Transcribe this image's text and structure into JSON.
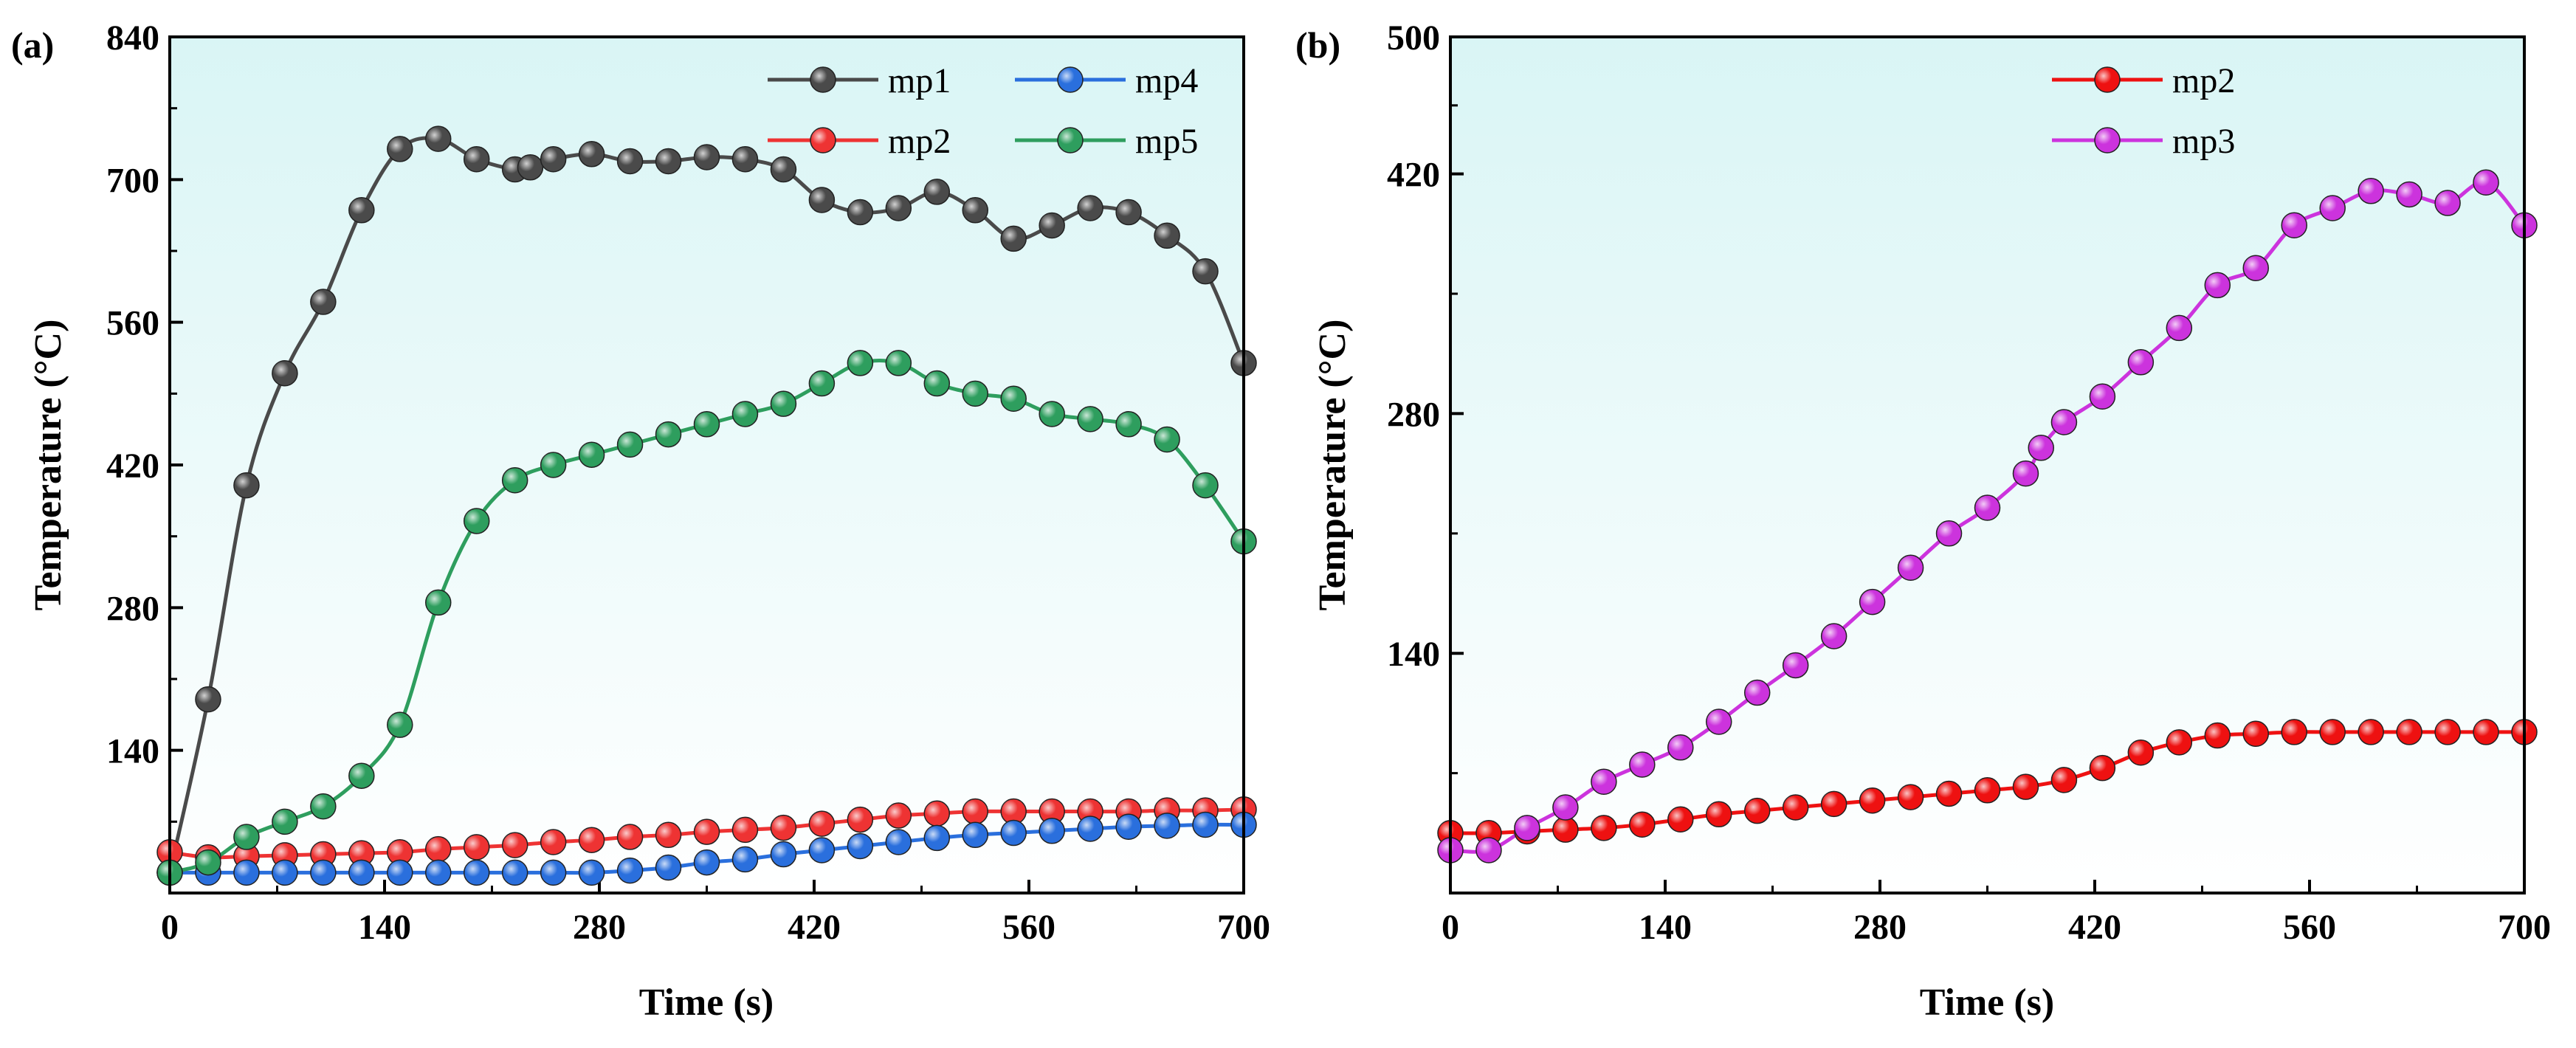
{
  "chart_data": [
    {
      "panel": "(a)",
      "type": "line",
      "xlabel": "Time (s)",
      "ylabel": "Temperature (°C)",
      "xlim": [
        0,
        700
      ],
      "ylim": [
        0,
        840
      ],
      "xticks": [
        0,
        140,
        280,
        420,
        560,
        700
      ],
      "yticks": [
        140,
        280,
        420,
        560,
        700,
        840
      ],
      "background": [
        "#ffffff",
        "#d9f5f5"
      ],
      "legend": {
        "placement": "top-right",
        "columns": 2
      },
      "series": [
        {
          "name": "mp1",
          "color": "#4a4a4a",
          "x": [
            0,
            25,
            50,
            75,
            100,
            125,
            150,
            175,
            200,
            225,
            235,
            250,
            275,
            300,
            325,
            350,
            375,
            400,
            425,
            450,
            475,
            500,
            525,
            550,
            575,
            600,
            625,
            650,
            675,
            700
          ],
          "y": [
            20,
            190,
            400,
            510,
            580,
            670,
            730,
            740,
            720,
            710,
            712,
            720,
            725,
            718,
            718,
            722,
            720,
            710,
            680,
            668,
            672,
            688,
            670,
            642,
            655,
            672,
            668,
            645,
            610,
            520
          ]
        },
        {
          "name": "mp2",
          "color": "#ee3333",
          "x": [
            0,
            25,
            50,
            75,
            100,
            125,
            150,
            175,
            200,
            225,
            250,
            275,
            300,
            325,
            350,
            375,
            400,
            425,
            450,
            475,
            500,
            525,
            550,
            575,
            600,
            625,
            650,
            675,
            700
          ],
          "y": [
            40,
            35,
            36,
            37,
            38,
            39,
            40,
            43,
            45,
            47,
            50,
            52,
            55,
            57,
            60,
            62,
            64,
            68,
            72,
            76,
            78,
            80,
            80,
            80,
            80,
            80,
            81,
            81,
            82
          ]
        },
        {
          "name": "mp4",
          "color": "#2a6fdd",
          "x": [
            0,
            25,
            50,
            75,
            100,
            125,
            150,
            175,
            200,
            225,
            250,
            275,
            300,
            325,
            350,
            375,
            400,
            425,
            450,
            475,
            500,
            525,
            550,
            575,
            600,
            625,
            650,
            675,
            700
          ],
          "y": [
            20,
            20,
            20,
            20,
            20,
            20,
            20,
            20,
            20,
            20,
            20,
            20,
            22,
            25,
            30,
            33,
            38,
            42,
            46,
            50,
            54,
            57,
            59,
            61,
            63,
            65,
            66,
            67,
            67
          ]
        },
        {
          "name": "mp5",
          "color": "#2e9e5e",
          "x": [
            0,
            25,
            50,
            75,
            100,
            125,
            150,
            175,
            200,
            225,
            250,
            275,
            300,
            325,
            350,
            375,
            400,
            425,
            450,
            475,
            500,
            525,
            550,
            575,
            600,
            625,
            650,
            675,
            700
          ],
          "y": [
            20,
            30,
            55,
            70,
            85,
            115,
            165,
            285,
            365,
            405,
            420,
            430,
            440,
            450,
            460,
            470,
            480,
            500,
            520,
            520,
            500,
            490,
            485,
            470,
            465,
            460,
            445,
            400,
            345
          ]
        }
      ]
    },
    {
      "panel": "(b)",
      "type": "line",
      "xlabel": "Time (s)",
      "ylabel": "Temperature (°C)",
      "xlim": [
        0,
        700
      ],
      "ylim": [
        0,
        500
      ],
      "xticks": [
        0,
        140,
        280,
        420,
        560,
        700
      ],
      "yticks": [
        140,
        280,
        420,
        500
      ],
      "background": [
        "#ffffff",
        "#d9f5f5"
      ],
      "legend": {
        "placement": "top-center",
        "columns": 1
      },
      "series": [
        {
          "name": "mp2",
          "color": "#ee1111",
          "x": [
            0,
            25,
            50,
            75,
            100,
            125,
            150,
            175,
            200,
            225,
            250,
            275,
            300,
            325,
            350,
            375,
            400,
            425,
            450,
            475,
            500,
            525,
            550,
            575,
            600,
            625,
            650,
            675,
            700
          ],
          "y": [
            35,
            35,
            36,
            37,
            38,
            40,
            43,
            46,
            48,
            50,
            52,
            54,
            56,
            58,
            60,
            62,
            66,
            73,
            82,
            88,
            92,
            93,
            94,
            94,
            94,
            94,
            94,
            94,
            94
          ]
        },
        {
          "name": "mp3",
          "color": "#cc33dd",
          "x": [
            0,
            25,
            50,
            75,
            100,
            125,
            150,
            175,
            200,
            225,
            250,
            275,
            300,
            325,
            350,
            375,
            385,
            400,
            425,
            450,
            475,
            500,
            525,
            550,
            575,
            600,
            625,
            650,
            675,
            700
          ],
          "y": [
            25,
            25,
            38,
            50,
            65,
            75,
            85,
            100,
            117,
            133,
            150,
            170,
            190,
            210,
            225,
            245,
            260,
            275,
            290,
            310,
            330,
            355,
            365,
            390,
            400,
            410,
            408,
            403,
            415,
            390
          ]
        }
      ]
    }
  ]
}
